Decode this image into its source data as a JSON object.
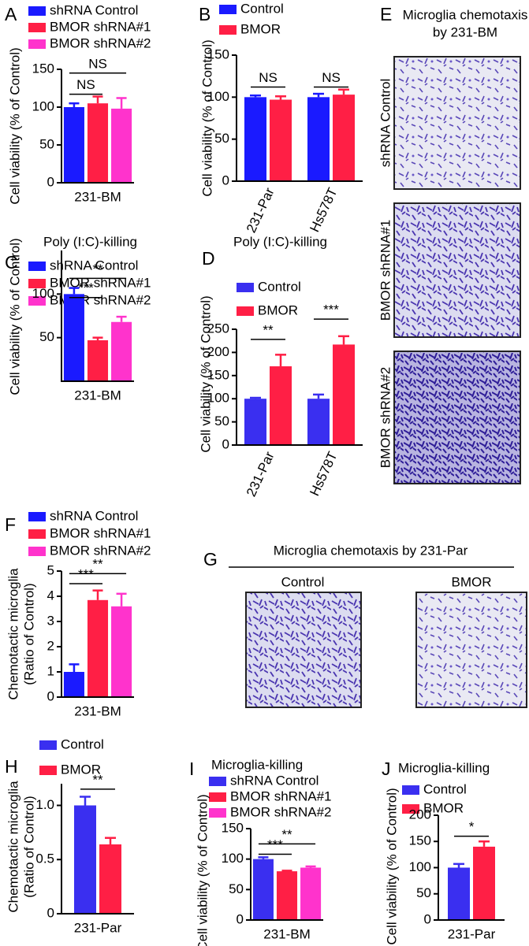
{
  "chart_data": [
    {
      "type": "bar",
      "panel": "A",
      "ylabel": "Cell viability (% of Control)",
      "categories": [
        "231-BM"
      ],
      "series": [
        {
          "name": "shRNA Control",
          "color": "#1a1aff",
          "values": [
            100
          ],
          "errors": [
            5
          ]
        },
        {
          "name": "BMOR shRNA#1",
          "color": "#ff1f45",
          "values": [
            105
          ],
          "errors": [
            9
          ]
        },
        {
          "name": "BMOR shRNA#2",
          "color": "#ff33cc",
          "values": [
            98
          ],
          "errors": [
            14
          ]
        }
      ],
      "ylim": [
        0,
        150
      ],
      "yticks": [
        0,
        50,
        100,
        150
      ],
      "annotations": [
        "NS",
        "NS"
      ]
    },
    {
      "type": "bar",
      "panel": "B",
      "ylabel": "Cell viability (% of Control)",
      "categories": [
        "231-Par",
        "Hs578T"
      ],
      "series": [
        {
          "name": "Control",
          "color": "#1a1aff",
          "values": [
            100,
            100
          ],
          "errors": [
            2,
            4
          ]
        },
        {
          "name": "BMOR",
          "color": "#ff1f45",
          "values": [
            97,
            103
          ],
          "errors": [
            4,
            6
          ]
        }
      ],
      "ylim": [
        0,
        150
      ],
      "yticks": [
        0,
        50,
        100,
        150
      ],
      "annotations": [
        "NS",
        "NS"
      ]
    },
    {
      "type": "bar",
      "panel": "C",
      "title": "Poly (I:C)-killing",
      "ylabel": "Cell viability (% of Control)",
      "categories": [
        "231-BM"
      ],
      "series": [
        {
          "name": "shRNA Control",
          "color": "#1a1aff",
          "values": [
            100
          ],
          "errors": [
            7
          ]
        },
        {
          "name": "BMOR shRNA#1",
          "color": "#ff1f45",
          "values": [
            47
          ],
          "errors": [
            3
          ]
        },
        {
          "name": "BMOR shRNA#2",
          "color": "#ff33cc",
          "values": [
            68
          ],
          "errors": [
            6
          ]
        }
      ],
      "ylim": [
        0,
        150
      ],
      "yticks": [
        50,
        100
      ],
      "annotations": [
        "**",
        "***"
      ]
    },
    {
      "type": "bar",
      "panel": "D",
      "title": "Poly (I:C)-killing",
      "ylabel": "Cell viability (% of Control)",
      "categories": [
        "231-Par",
        "Hs578T"
      ],
      "series": [
        {
          "name": "Control",
          "color": "#3a2ff0",
          "values": [
            100,
            100
          ],
          "errors": [
            2,
            9
          ]
        },
        {
          "name": "BMOR",
          "color": "#ff1f45",
          "values": [
            170,
            217
          ],
          "errors": [
            25,
            18
          ]
        }
      ],
      "ylim": [
        0,
        250
      ],
      "yticks": [
        0,
        50,
        100,
        150,
        200,
        250
      ],
      "annotations": [
        "**",
        "***"
      ]
    },
    {
      "type": "bar",
      "panel": "F",
      "ylabel": [
        "Chemotactic microglia",
        "(Ratio of Control)"
      ],
      "categories": [
        "231-BM"
      ],
      "series": [
        {
          "name": "shRNA Control",
          "color": "#1a1aff",
          "values": [
            1.0
          ],
          "errors": [
            0.3
          ]
        },
        {
          "name": "BMOR shRNA#1",
          "color": "#ff1f45",
          "values": [
            3.85
          ],
          "errors": [
            0.38
          ]
        },
        {
          "name": "BMOR shRNA#2",
          "color": "#ff33cc",
          "values": [
            3.6
          ],
          "errors": [
            0.5
          ]
        }
      ],
      "ylim": [
        0,
        5
      ],
      "yticks": [
        0,
        1,
        2,
        3,
        4,
        5
      ],
      "annotations": [
        "**",
        "***"
      ]
    },
    {
      "type": "bar",
      "panel": "H",
      "ylabel": [
        "Chemotactic microglia",
        "(Ratio of Control)"
      ],
      "categories": [
        "231-Par"
      ],
      "series": [
        {
          "name": "Control",
          "color": "#3a2ff0",
          "values": [
            1.0
          ],
          "errors": [
            0.08
          ]
        },
        {
          "name": "BMOR",
          "color": "#ff1f45",
          "values": [
            0.64
          ],
          "errors": [
            0.06
          ]
        }
      ],
      "ylim": [
        0,
        1.2
      ],
      "yticks": [
        0,
        {
          "value": 0.5,
          "label": "0.5"
        },
        {
          "value": 1,
          "label": "1.0"
        }
      ],
      "annotations": [
        "**"
      ]
    },
    {
      "type": "bar",
      "panel": "I",
      "title": "Microglia-killing",
      "ylabel": "Cell viability (% of Control)",
      "categories": [
        "231-BM"
      ],
      "series": [
        {
          "name": "shRNA Control",
          "color": "#3a2ff0",
          "values": [
            100
          ],
          "errors": [
            3
          ]
        },
        {
          "name": "BMOR shRNA#1",
          "color": "#ff1f45",
          "values": [
            80
          ],
          "errors": [
            1
          ]
        },
        {
          "name": "BMOR shRNA#2",
          "color": "#ff33cc",
          "values": [
            86
          ],
          "errors": [
            2
          ]
        }
      ],
      "ylim": [
        0,
        150
      ],
      "yticks": [
        0,
        50,
        100,
        150
      ],
      "annotations": [
        "**",
        "***"
      ]
    },
    {
      "type": "bar",
      "panel": "J",
      "title": "Microglia-killing",
      "ylabel": "Cell viability (% of Control)",
      "categories": [
        "231-Par"
      ],
      "series": [
        {
          "name": "Control",
          "color": "#3a2ff0",
          "values": [
            100
          ],
          "errors": [
            7
          ]
        },
        {
          "name": "BMOR",
          "color": "#ff1f45",
          "values": [
            140
          ],
          "errors": [
            10
          ]
        }
      ],
      "ylim": [
        0,
        200
      ],
      "yticks": [
        0,
        50,
        100,
        150,
        200
      ],
      "annotations": [
        "*"
      ]
    }
  ],
  "image_panels": [
    {
      "panel": "E",
      "title": [
        "Microglia chemotaxis",
        "by 231-BM"
      ],
      "labels": [
        "shRNA Control",
        "BMOR shRNA#1",
        "BMOR shRNA#2"
      ]
    },
    {
      "panel": "G",
      "title": "Microglia chemotaxis by 231-Par",
      "labels": [
        "Control",
        "BMOR"
      ]
    }
  ]
}
